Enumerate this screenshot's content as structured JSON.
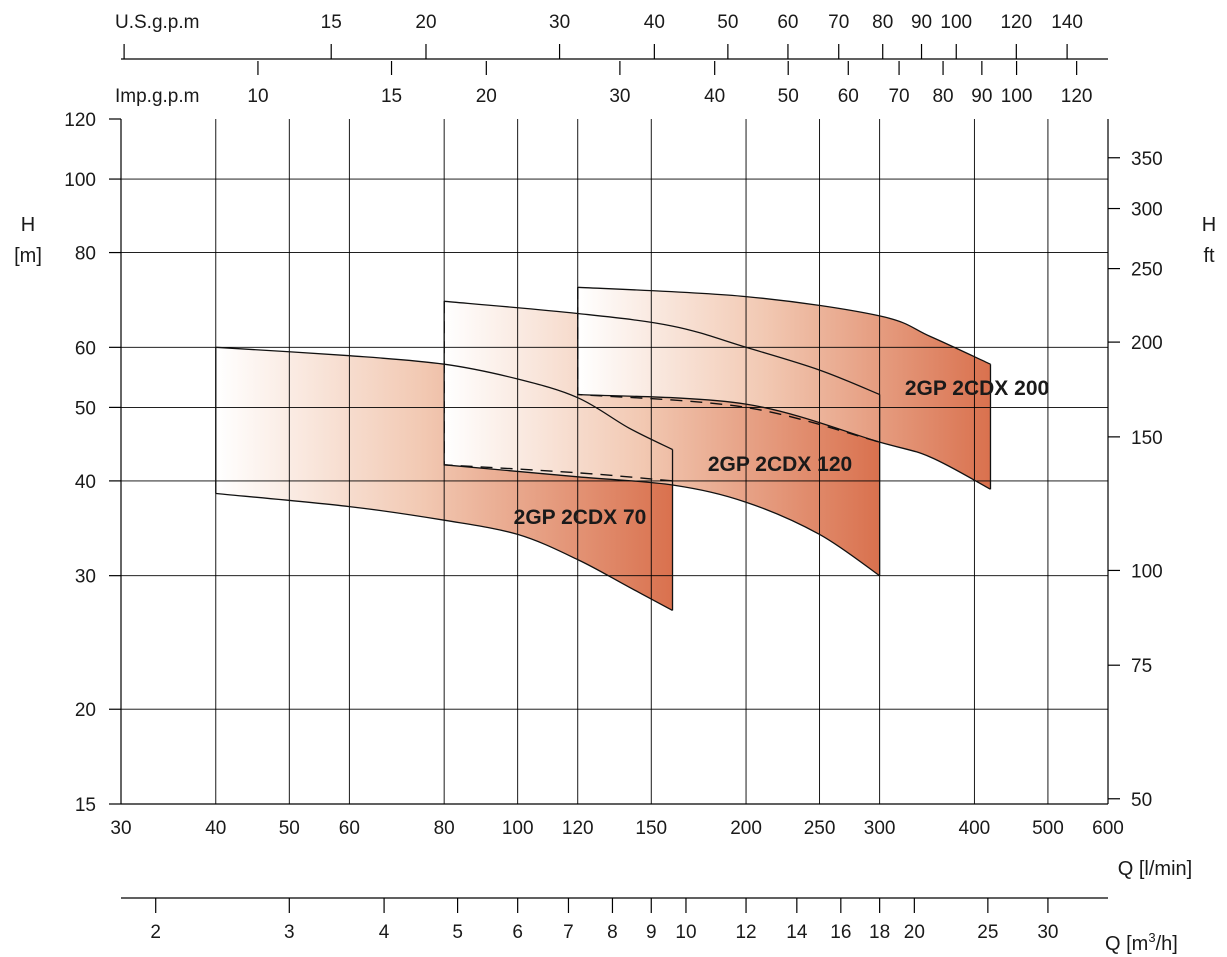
{
  "chart_data": {
    "type": "area",
    "x_axis": {
      "label": "Q [l/min]",
      "scale": "log",
      "range": [
        30,
        600
      ],
      "ticks": [
        30,
        40,
        50,
        60,
        80,
        100,
        120,
        150,
        200,
        250,
        300,
        400,
        500,
        600
      ],
      "tick_labels": [
        "30",
        "40",
        "50",
        "60",
        "80",
        "100",
        "120",
        "150",
        "200",
        "250",
        "300",
        "400",
        "500",
        "600"
      ],
      "vertical_grid": [
        30,
        40,
        50,
        60,
        80,
        100,
        120,
        150,
        200,
        250,
        300,
        400,
        500
      ]
    },
    "y_axis": {
      "label_line1": "H",
      "label_line2": "[m]",
      "scale": "log",
      "range": [
        15,
        120
      ],
      "ticks": [
        15,
        20,
        30,
        40,
        50,
        60,
        80,
        100,
        120
      ],
      "tick_labels": [
        "15",
        "20",
        "30",
        "40",
        "50",
        "60",
        "80",
        "100",
        "120"
      ],
      "horizontal_grid": [
        20,
        30,
        40,
        50,
        60,
        80,
        100
      ]
    },
    "y2_axis": {
      "label_line1": "H",
      "label_line2": "ft",
      "ticks": [
        50,
        75,
        100,
        150,
        200,
        250,
        300,
        350
      ],
      "tick_labels": [
        "50",
        "75",
        "100",
        "150",
        "200",
        "250",
        "300",
        "350"
      ]
    },
    "top_axis_usgpm": {
      "label": "U.S.g.p.m",
      "ticks": [
        8,
        15,
        20,
        30,
        40,
        50,
        60,
        70,
        80,
        90,
        100,
        120,
        140
      ],
      "tick_labels": [
        "",
        "15",
        "20",
        "30",
        "40",
        "50",
        "60",
        "70",
        "80",
        "90",
        "100",
        "120",
        "140"
      ]
    },
    "top_axis_impgpm": {
      "label": "Imp.g.p.m",
      "ticks": [
        10,
        15,
        20,
        30,
        40,
        50,
        60,
        70,
        80,
        90,
        100,
        120
      ],
      "tick_labels": [
        "10",
        "15",
        "20",
        "30",
        "40",
        "50",
        "60",
        "70",
        "80",
        "90",
        "100",
        "120"
      ]
    },
    "bottom_axis_m3h": {
      "label": "Q [m",
      "label_sup": "3",
      "label_end": "/h]",
      "ticks": [
        2,
        3,
        4,
        5,
        6,
        7,
        8,
        9,
        10,
        12,
        14,
        16,
        18,
        20,
        25,
        30
      ],
      "tick_labels": [
        "2",
        "3",
        "4",
        "5",
        "6",
        "7",
        "8",
        "9",
        "10",
        "12",
        "14",
        "16",
        "18",
        "20",
        "25",
        "30"
      ]
    },
    "series": [
      {
        "name": "2GP 2CDX 70",
        "color": "#d9714e",
        "upper": [
          [
            40,
            60
          ],
          [
            60,
            58.5
          ],
          [
            80,
            57
          ],
          [
            100,
            54.5
          ],
          [
            120,
            51.5
          ],
          [
            140,
            47
          ],
          [
            160,
            44
          ]
        ],
        "lower": [
          [
            40,
            38.5
          ],
          [
            60,
            37
          ],
          [
            80,
            35.5
          ],
          [
            100,
            34
          ],
          [
            120,
            31.5
          ],
          [
            140,
            29
          ],
          [
            160,
            27
          ]
        ],
        "dashed": []
      },
      {
        "name": "2GP 2CDX 120",
        "color": "#d9714e",
        "upper": [
          [
            80,
            69
          ],
          [
            120,
            66.5
          ],
          [
            160,
            64
          ],
          [
            200,
            60
          ],
          [
            250,
            56
          ],
          [
            300,
            52
          ]
        ],
        "lower": [
          [
            80,
            42
          ],
          [
            120,
            40.5
          ],
          [
            160,
            39.5
          ],
          [
            200,
            37.5
          ],
          [
            250,
            34
          ],
          [
            300,
            30
          ]
        ],
        "dashed": [
          [
            80,
            69
          ],
          [
            80,
            42
          ],
          [
            120,
            41
          ],
          [
            160,
            40
          ]
        ]
      },
      {
        "name": "2GP 2CDX 200",
        "color": "#d9714e",
        "upper": [
          [
            120,
            72
          ],
          [
            200,
            70
          ],
          [
            300,
            66
          ],
          [
            350,
            62
          ],
          [
            420,
            57
          ]
        ],
        "lower": [
          [
            120,
            52
          ],
          [
            200,
            50.5
          ],
          [
            300,
            45
          ],
          [
            350,
            43
          ],
          [
            420,
            39
          ]
        ],
        "dashed": [
          [
            120,
            72
          ],
          [
            120,
            52
          ],
          [
            200,
            50
          ],
          [
            300,
            45
          ]
        ]
      }
    ]
  }
}
